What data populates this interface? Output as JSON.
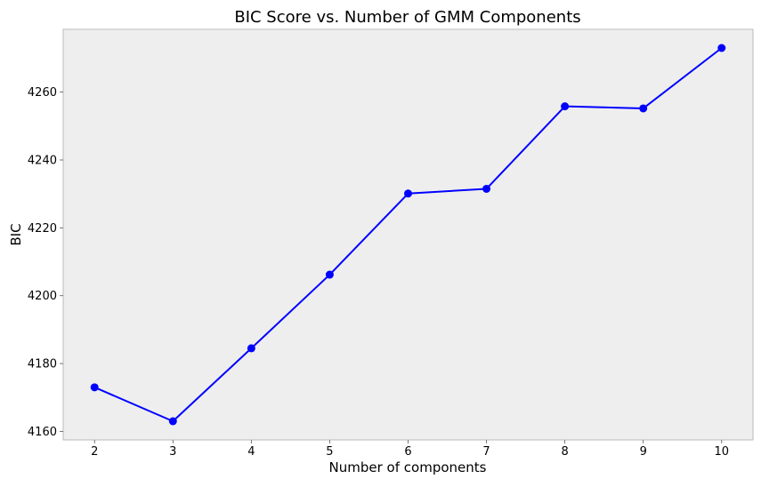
{
  "chart_data": {
    "type": "line",
    "title": "BIC Score vs. Number of GMM Components",
    "xlabel": "Number of components",
    "ylabel": "BIC",
    "x": [
      2,
      3,
      4,
      5,
      6,
      7,
      8,
      9,
      10
    ],
    "series": [
      {
        "values": [
          4173.0,
          4163.0,
          4184.5,
          4206.2,
          4230.1,
          4231.5,
          4255.8,
          4255.2,
          4273.0
        ],
        "color": "#0000ff",
        "marker": "circle"
      }
    ],
    "xticks": [
      "2",
      "3",
      "4",
      "5",
      "6",
      "7",
      "8",
      "9",
      "10"
    ],
    "yticks": [
      4160,
      4180,
      4200,
      4220,
      4240,
      4260
    ],
    "ytick_labels": [
      "4160",
      "4180",
      "4200",
      "4220",
      "4240",
      "4260"
    ],
    "xlim": [
      1.6,
      10.4
    ],
    "ylim": [
      4157.5,
      4278.5
    ],
    "grid": false,
    "background": "#eeeeee",
    "frame_color": "#bbbbbb"
  }
}
